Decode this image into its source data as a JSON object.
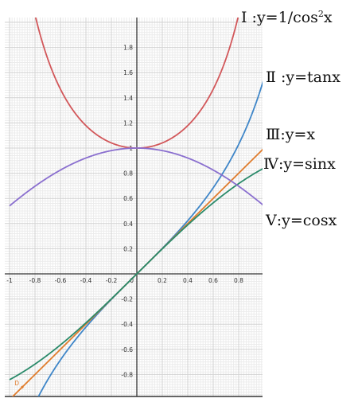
{
  "chart_data": {
    "type": "line",
    "xlim": [
      -1,
      1
    ],
    "ylim": [
      -1,
      2
    ],
    "grid": true,
    "x_ticks": [
      -1,
      -0.8,
      -0.6,
      -0.4,
      -0.2,
      0.2,
      0.4,
      0.6,
      0.8
    ],
    "x_tick_labels": [
      "-1",
      "-0.8",
      "-0.6",
      "-0.4",
      "-0.2",
      "0.2",
      "0.4",
      "0.6",
      "0.8"
    ],
    "y_ticks": [
      1.8,
      1.6,
      1.4,
      1.2,
      1,
      0.8,
      0.6,
      0.4,
      0.2,
      -0.2,
      -0.4,
      -0.6,
      -0.8
    ],
    "y_tick_labels": [
      "1.8",
      "1.6",
      "1.4",
      "1.2",
      "1",
      "0.8",
      "0.6",
      "0.4",
      "0.2",
      "-0.2",
      "-0.4",
      "-0.6",
      "-0.8"
    ],
    "origin_label": "0",
    "point_label": "D",
    "series": [
      {
        "id": "sec2",
        "expr": "1/cos(x)^2",
        "color": "#d2575a",
        "label": "Ⅰ :y=1/cos",
        "label_sup": "2",
        "label_tail": "x"
      },
      {
        "id": "tan",
        "expr": "tan(x)",
        "color": "#3f86c8",
        "label": "Ⅱ :y=tanx"
      },
      {
        "id": "ident",
        "expr": "x",
        "color": "#e07d2e",
        "label": "Ⅲ:y=x"
      },
      {
        "id": "sin",
        "expr": "sin(x)",
        "color": "#2a8a6a",
        "label": "Ⅳ:y=sinx"
      },
      {
        "id": "cos",
        "expr": "cos(x)",
        "color": "#8a6fcf",
        "label": "Ⅴ:y=cosx"
      }
    ]
  }
}
